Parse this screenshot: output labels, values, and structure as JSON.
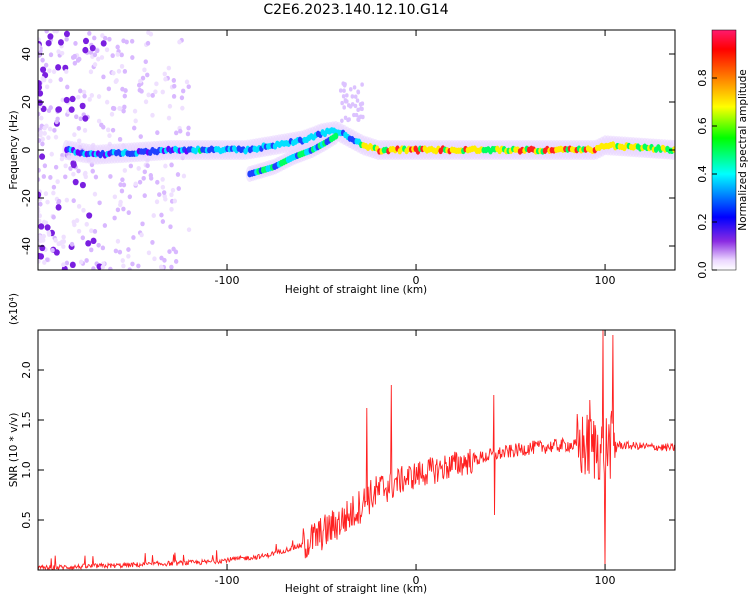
{
  "figure_title": "C2E6.2023.140.12.10.G14",
  "chart_data": [
    {
      "type": "heatmap",
      "title": "C2E6.2023.140.12.10.G14",
      "xlabel": "Height of straight line (km)",
      "ylabel": "Frequency (Hz)",
      "xlim": [
        -200,
        137
      ],
      "ylim": [
        -50,
        50
      ],
      "x_ticks": [
        -100,
        0,
        100
      ],
      "y_ticks": [
        -40,
        -20,
        0,
        20,
        40
      ],
      "colorbar": {
        "label": "Normalized spectral amplitude",
        "range": [
          0,
          1
        ],
        "ticks": [
          "0.0",
          "0.2",
          "0.4",
          "0.6",
          "0.8"
        ],
        "colormap": [
          "#ffffff",
          "#ecd8ff",
          "#8a2be2",
          "#0000ff",
          "#00ffff",
          "#00ff00",
          "#ffff00",
          "#ff8000",
          "#ff0000",
          "#ff1a6e"
        ]
      },
      "noise_region_x": [
        -200,
        -120
      ],
      "main_track": [
        {
          "x": -185,
          "f": 0
        },
        {
          "x": -170,
          "f": -2
        },
        {
          "x": -150,
          "f": -1
        },
        {
          "x": -130,
          "f": 0
        },
        {
          "x": -110,
          "f": 0
        },
        {
          "x": -90,
          "f": 0
        },
        {
          "x": -75,
          "f": 2
        },
        {
          "x": -60,
          "f": 4
        },
        {
          "x": -50,
          "f": 7
        },
        {
          "x": -42,
          "f": 8
        },
        {
          "x": -35,
          "f": 5
        },
        {
          "x": -28,
          "f": 2
        },
        {
          "x": -20,
          "f": 0
        },
        {
          "x": 0,
          "f": 0
        },
        {
          "x": 50,
          "f": 0
        },
        {
          "x": 95,
          "f": 0
        },
        {
          "x": 100,
          "f": 2
        },
        {
          "x": 137,
          "f": 0
        }
      ],
      "secondary_track": [
        {
          "x": -88,
          "f": -10
        },
        {
          "x": -75,
          "f": -7
        },
        {
          "x": -65,
          "f": -3
        },
        {
          "x": -55,
          "f": 0
        },
        {
          "x": -48,
          "f": 3
        },
        {
          "x": -42,
          "f": 6
        }
      ]
    },
    {
      "type": "line",
      "xlabel": "Height of straight line (km)",
      "ylabel": "SNR (10 * v/v)",
      "y_scale_label": "(x10⁴)",
      "xlim": [
        -200,
        137
      ],
      "ylim": [
        0,
        2.4
      ],
      "x_ticks": [
        -100,
        0,
        100
      ],
      "y_ticks": [
        "0.5",
        "1.0",
        "1.5",
        "2.0"
      ],
      "series_color": "#ff2020",
      "baseline": [
        {
          "x": -200,
          "y": 0.02
        },
        {
          "x": -150,
          "y": 0.05
        },
        {
          "x": -110,
          "y": 0.08
        },
        {
          "x": -80,
          "y": 0.14
        },
        {
          "x": -60,
          "y": 0.25
        },
        {
          "x": -45,
          "y": 0.42
        },
        {
          "x": -35,
          "y": 0.55
        },
        {
          "x": -25,
          "y": 0.72
        },
        {
          "x": -15,
          "y": 0.85
        },
        {
          "x": 0,
          "y": 0.95
        },
        {
          "x": 20,
          "y": 1.05
        },
        {
          "x": 40,
          "y": 1.15
        },
        {
          "x": 60,
          "y": 1.22
        },
        {
          "x": 80,
          "y": 1.25
        },
        {
          "x": 95,
          "y": 1.22
        },
        {
          "x": 105,
          "y": 1.25
        },
        {
          "x": 137,
          "y": 1.22
        }
      ],
      "spikes": [
        {
          "x": -26,
          "y": 1.62
        },
        {
          "x": -13,
          "y": 1.85
        },
        {
          "x": 41,
          "y": 1.75
        },
        {
          "x": 41.5,
          "y": 0.55
        },
        {
          "x": 92,
          "y": 1.7
        },
        {
          "x": 99,
          "y": 2.4
        },
        {
          "x": 100,
          "y": 0.02
        },
        {
          "x": 104,
          "y": 2.35
        }
      ]
    }
  ]
}
